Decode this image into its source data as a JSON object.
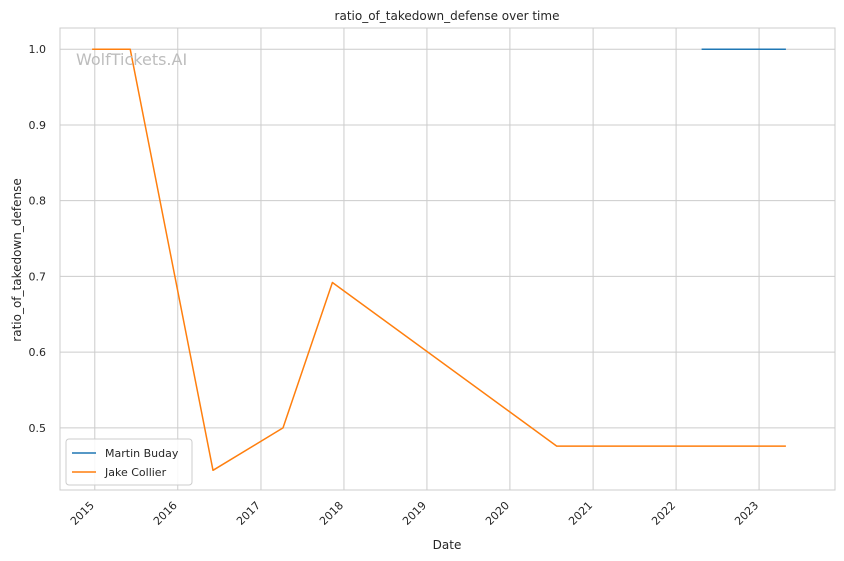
{
  "chart_data": {
    "type": "line",
    "title": "ratio_of_takedown_defense over time",
    "xlabel": "Date",
    "ylabel": "ratio_of_takedown_defense",
    "watermark": "WolfTickets.AI",
    "x_ticks": [
      "2015",
      "2016",
      "2017",
      "2018",
      "2019",
      "2020",
      "2021",
      "2022",
      "2023"
    ],
    "y_ticks": [
      "0.5",
      "0.6",
      "0.7",
      "0.8",
      "0.9",
      "1.0"
    ],
    "xlim": [
      "2014-08-01",
      "2023-12-01"
    ],
    "ylim": [
      0.418,
      1.028
    ],
    "grid": true,
    "legend_position": "lower-left",
    "series": [
      {
        "name": "Martin Buday",
        "color": "#1f77b4",
        "points": [
          {
            "x": "2022-04-23",
            "y": 1.0
          },
          {
            "x": "2023-04-29",
            "y": 1.0
          }
        ]
      },
      {
        "name": "Jake Collier",
        "color": "#ff7f0e",
        "points": [
          {
            "x": "2014-12-20",
            "y": 1.0
          },
          {
            "x": "2015-06-06",
            "y": 1.0
          },
          {
            "x": "2016-06-04",
            "y": 0.444
          },
          {
            "x": "2017-04-08",
            "y": 0.5
          },
          {
            "x": "2017-11-11",
            "y": 0.692
          },
          {
            "x": "2020-07-25",
            "y": 0.476
          },
          {
            "x": "2023-04-29",
            "y": 0.476
          }
        ]
      }
    ]
  }
}
